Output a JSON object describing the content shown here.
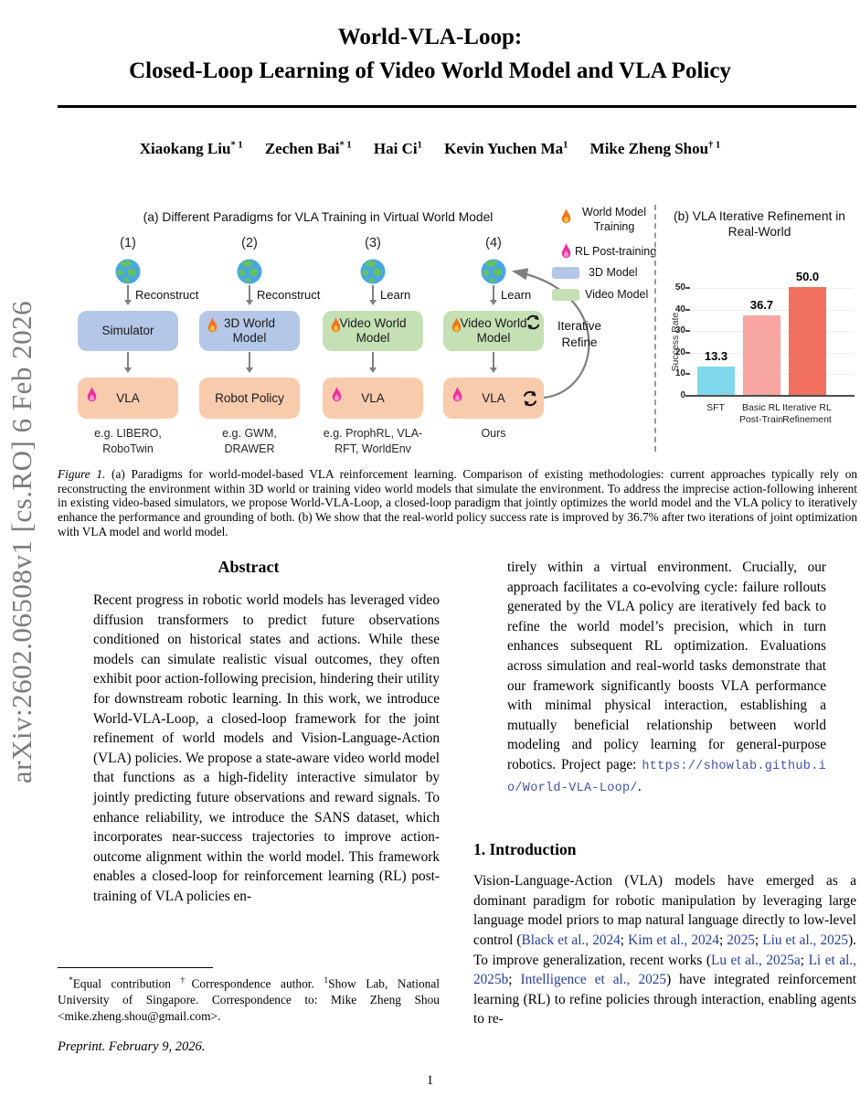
{
  "arxiv_label": "arXiv:2602.06508v1  [cs.RO]  6 Feb 2026",
  "header": {
    "title_line1": "World-VLA-Loop:",
    "title_line2": "Closed-Loop Learning of Video World Model and VLA Policy",
    "authors": [
      {
        "name": "Xiaokang Liu",
        "sup": "* 1"
      },
      {
        "name": "Zechen Bai",
        "sup": "* 1"
      },
      {
        "name": "Hai Ci",
        "sup": "1"
      },
      {
        "name": "Kevin Yuchen Ma",
        "sup": "1"
      },
      {
        "name": "Mike Zheng Shou",
        "sup": "† 1"
      }
    ]
  },
  "figure": {
    "panel_a": {
      "title": "(a) Different Paradigms for VLA Training in Virtual World Model",
      "columns": [
        {
          "id": "(1)",
          "arrow_label": "Reconstruct",
          "top_line1": "Simulator",
          "top_line2": "",
          "bottom_line1": "VLA",
          "example_line1": "e.g. LIBERO,",
          "example_line2": "RoboTwin"
        },
        {
          "id": "(2)",
          "arrow_label": "Reconstruct",
          "top_line1": "3D World",
          "top_line2": "Model",
          "bottom_line1": "Robot Policy",
          "example_line1": "e.g. GWM,",
          "example_line2": "DRAWER"
        },
        {
          "id": "(3)",
          "arrow_label": "Learn",
          "top_line1": "Video World",
          "top_line2": "Model",
          "bottom_line1": "VLA",
          "example_line1": "e.g. ProphRL, VLA-",
          "example_line2": "RFT, WorldEnv"
        },
        {
          "id": "(4)",
          "arrow_label": "Learn",
          "top_line1": "Video World",
          "top_line2": "Model",
          "bottom_line1": "VLA",
          "example_line1": "Ours",
          "example_line2": ""
        }
      ],
      "iterative_label_line1": "Iterative",
      "iterative_label_line2": "Refine",
      "legend": [
        {
          "icon": "flame-orange-icon",
          "label": "World Model Training"
        },
        {
          "icon": "flame-pink-icon",
          "label": "RL Post-training"
        },
        {
          "icon": "blue-swatch",
          "label": "3D Model"
        },
        {
          "icon": "green-swatch",
          "label": "Video Model"
        }
      ],
      "colors": {
        "box_blue": "#b4c7e7",
        "box_green": "#c5e0b4",
        "box_orange": "#f8cbad"
      }
    },
    "chart_data": {
      "type": "bar",
      "title": "(b) VLA Iterative Refinement in Real-World",
      "categories": [
        "SFT",
        "Basic RL Post-Train",
        "Iterative RL Refinement"
      ],
      "categories_lines": [
        [
          "SFT",
          ""
        ],
        [
          "Basic RL",
          "Post-Train"
        ],
        [
          "Iterative RL",
          "Refinement"
        ]
      ],
      "values": [
        13.3,
        36.7,
        50.0
      ],
      "value_labels": [
        "13.3",
        "36.7",
        "50.0"
      ],
      "bar_colors": [
        "#7fd8ec",
        "#f7a6a1",
        "#f1705e"
      ],
      "xlabel": "",
      "ylabel": "Success Rate",
      "ylim": [
        0,
        55
      ],
      "yticks": [
        0,
        10,
        20,
        30,
        40,
        50
      ],
      "grid": true,
      "legend_position": "none"
    },
    "caption_label": "Figure 1.",
    "caption_text": " (a) Paradigms for world-model-based VLA reinforcement learning. Comparison of existing methodologies: current approaches typically rely on reconstructing the environment within 3D world or training video world models that simulate the environment. To address the imprecise action-following inherent in existing video-based simulators, we propose World-VLA-Loop, a closed-loop paradigm that jointly optimizes the world model and the VLA policy to iteratively enhance the performance and grounding of both. (b) We show that the real-world policy success rate is improved by 36.7% after two iterations of joint optimization with VLA model and world model."
  },
  "abstract": {
    "heading": "Abstract",
    "col1_text": "Recent progress in robotic world models has leveraged video diffusion transformers to predict future observations conditioned on historical states and actions.  While these models can simulate realistic visual outcomes, they often exhibit poor action-following precision, hindering their utility for downstream robotic learning.  In this work, we introduce World-VLA-Loop, a closed-loop framework for the joint refinement of world models and Vision-Language-Action (VLA) policies. We propose a state-aware video world model that functions as a high-fidelity interactive simulator by jointly predicting future observations and reward signals.  To enhance reliability, we introduce the SANS dataset, which incorporates near-success trajectories to improve action-outcome alignment within the world model.  This framework enables a closed-loop for reinforcement learning (RL) post-training of VLA policies en-",
    "col2_segments": [
      {
        "t": "tirely within a virtual environment. Crucially, our approach facilitates a co-evolving cycle: failure rollouts generated by the VLA policy are iteratively fed back to refine the world model’s precision, which in turn enhances subsequent RL optimization. Evaluations across simulation and real-world tasks demonstrate that our framework significantly boosts VLA performance with minimal physical interaction, establishing a mutually beneficial relationship between world modeling and policy learning for general-purpose robotics. Project page: ",
        "s": ""
      },
      {
        "t": "https://showlab.github.io/World-VLA-Loop/",
        "s": "url"
      },
      {
        "t": ".",
        "s": ""
      }
    ]
  },
  "introduction": {
    "heading": "1. Introduction",
    "para_segments": [
      {
        "t": "Vision-Language-Action (VLA) models have emerged as a dominant paradigm for robotic manipulation by leveraging large language model priors to map natural language directly to low-level control (",
        "s": ""
      },
      {
        "t": "Black et al., 2024",
        "s": "cite"
      },
      {
        "t": "; ",
        "s": ""
      },
      {
        "t": "Kim et al., 2024",
        "s": "cite"
      },
      {
        "t": "; ",
        "s": ""
      },
      {
        "t": "2025",
        "s": "cite"
      },
      {
        "t": "; ",
        "s": ""
      },
      {
        "t": "Liu et al., 2025",
        "s": "cite"
      },
      {
        "t": ").  To improve generalization, recent works (",
        "s": ""
      },
      {
        "t": "Lu et al., 2025a",
        "s": "cite"
      },
      {
        "t": "; ",
        "s": ""
      },
      {
        "t": "Li et al., 2025b",
        "s": "cite"
      },
      {
        "t": "; ",
        "s": ""
      },
      {
        "t": "Intelligence et al., 2025",
        "s": "cite"
      },
      {
        "t": ") have integrated reinforcement learning (RL) to refine policies through interaction, enabling agents to re-",
        "s": ""
      }
    ]
  },
  "footnote": {
    "segments": [
      {
        "t": "*",
        "s": "sup"
      },
      {
        "t": "Equal contribution ",
        "s": ""
      },
      {
        "t": "†",
        "s": "sup"
      },
      {
        "t": "Correspondence author. ",
        "s": ""
      },
      {
        "t": "1",
        "s": "sup"
      },
      {
        "t": "Show Lab, National University of Singapore. Correspondence to: Mike Zheng Shou <mike.zheng.shou@gmail.com>.",
        "s": ""
      }
    ],
    "preprint": "Preprint. February 9, 2026."
  },
  "page_number": "1"
}
